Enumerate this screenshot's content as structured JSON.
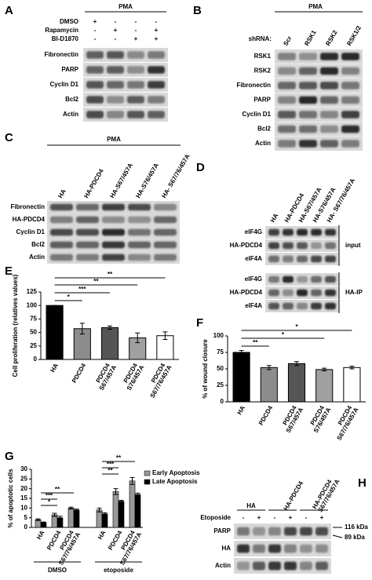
{
  "blots": {
    "A": {
      "letter": "A",
      "title": "PMA",
      "treatments": [
        {
          "name": "DMSO",
          "signs": [
            "+",
            "-",
            "-",
            "-"
          ]
        },
        {
          "name": "Rapamycin",
          "signs": [
            "-",
            "+",
            "-",
            "+"
          ]
        },
        {
          "name": "BI-D1870",
          "signs": [
            "-",
            "-",
            "+",
            "+"
          ]
        }
      ],
      "rows": [
        "Fibronectin",
        "PARP",
        "Cyclin D1",
        "Bcl2",
        "Actin"
      ]
    },
    "B": {
      "letter": "B",
      "title": "PMA",
      "lane_label": "shRNA:",
      "lanes": [
        "Scr",
        "RSK1",
        "RSK2",
        "RSK1/2"
      ],
      "rows": [
        "RSK1",
        "RSK2",
        "Fibronectin",
        "PARP",
        "Cyclin D1",
        "Bcl2",
        "Actin"
      ]
    },
    "C": {
      "letter": "C",
      "title": "PMA",
      "lanes": [
        "HA",
        "HA-PDCD4",
        "HA-S67/457A",
        "HA-S76/457A",
        "HA- S67/76/457A"
      ],
      "rows": [
        "Fibronectin",
        "HA-PDCD4",
        "Cyclin D1",
        "Bcl2",
        "Actin"
      ]
    },
    "D": {
      "letter": "D",
      "lanes": [
        "HA",
        "HA-PDCD4",
        "HA-S67/457A",
        "HA-S76/457A",
        "HA- S67/76/457A"
      ],
      "groups": [
        {
          "name": "input",
          "rows": [
            "eIF4G",
            "HA-PDCD4",
            "eIF4A"
          ]
        },
        {
          "name": "HA-IP",
          "rows": [
            "eIF4G",
            "HA-PDCD4",
            "eIF4A"
          ]
        }
      ]
    },
    "H": {
      "letter": "H",
      "lane_groups": [
        "HA",
        "HA-PDCD4",
        "HA-PDCD4 S67/76/457A"
      ],
      "treatments": [
        {
          "name": "Etoposide",
          "signs": [
            "-",
            "+",
            "-",
            "+",
            "-",
            "+"
          ]
        }
      ],
      "rows": [
        "PARP",
        "HA",
        "Actin"
      ],
      "markers": [
        "116 kDa",
        "89 kDa"
      ]
    }
  },
  "chart_data": [
    {
      "type": "bar",
      "letter": "E",
      "ylabel": "Cell proliferation (relatives values)",
      "categories": [
        "HA",
        "PDCD4",
        "PDCD4 S67/457A",
        "PDCD4 S76/457A",
        "PDCD4 S67/76/457A"
      ],
      "values": [
        100,
        57,
        59,
        40,
        44
      ],
      "errors": [
        0,
        10,
        3,
        9,
        7
      ],
      "colors": [
        "#000000",
        "#8c8c8c",
        "#555555",
        "#a0a0a0",
        "#ffffff"
      ],
      "ylim": [
        0,
        125
      ],
      "yticks": [
        0,
        25,
        50,
        75,
        100,
        125
      ],
      "significance": [
        "*",
        "***",
        "**",
        "**"
      ]
    },
    {
      "type": "bar",
      "letter": "F",
      "ylabel": "% of wound closure",
      "categories": [
        "HA",
        "PDCD4",
        "PDCD4 S67/457A",
        "PDCD4 S76/457A",
        "PDCD4 S67/76/457A"
      ],
      "values": [
        75,
        52,
        58,
        49,
        52
      ],
      "errors": [
        3,
        3,
        3,
        2,
        2
      ],
      "colors": [
        "#000000",
        "#8c8c8c",
        "#555555",
        "#a0a0a0",
        "#ffffff"
      ],
      "ylim": [
        0,
        100
      ],
      "yticks": [
        0,
        25,
        50,
        75,
        100
      ],
      "significance": [
        "**",
        "*",
        "*"
      ]
    },
    {
      "type": "grouped_bar",
      "letter": "G",
      "ylabel": "% of apoptotic cells",
      "categories": [
        "HA",
        "PDCD4",
        "PDCD4 S67/76/457A",
        "HA",
        "PDCD4",
        "PDCD4 S67/76/457A"
      ],
      "groups": [
        "DMSO",
        "etoposide"
      ],
      "series": [
        {
          "name": "Early Apoptosis",
          "color": "#999999",
          "values": [
            4,
            6.5,
            10,
            9,
            18.5,
            24
          ],
          "errors": [
            0.4,
            0.8,
            0.5,
            1,
            1.5,
            1.8
          ]
        },
        {
          "name": "Late Apoptosis",
          "color": "#000000",
          "values": [
            2.5,
            5,
            9,
            7,
            13.5,
            17
          ],
          "errors": [
            0.3,
            0.8,
            0.5,
            0.6,
            0.5,
            0.7
          ]
        }
      ],
      "ylim": [
        0,
        30
      ],
      "yticks": [
        0,
        5,
        10,
        15,
        20,
        25,
        30
      ],
      "significance": [
        "*",
        "***",
        "**",
        "**",
        "***",
        "**"
      ]
    }
  ]
}
